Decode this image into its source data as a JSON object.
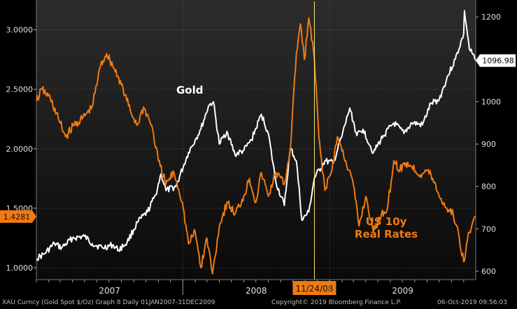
{
  "chart_data": {
    "type": "line",
    "title": "",
    "x_range": [
      "2007-01-01",
      "2009-12-31"
    ],
    "x_year_labels": [
      "2007",
      "2008",
      "2009"
    ],
    "y_left": {
      "range": [
        0.9,
        3.25
      ],
      "ticks": [
        "1.0000",
        "1.5000",
        "2.0000",
        "2.5000",
        "3.0000"
      ]
    },
    "y_right": {
      "range": [
        580,
        1240
      ],
      "ticks": [
        "600",
        "700",
        "800",
        "900",
        "1000",
        "1100",
        "1200"
      ]
    },
    "grid": true,
    "marker": {
      "date": "2008-11-24",
      "label": "11/24/08"
    },
    "series": [
      {
        "name": "Gold",
        "axis": "right",
        "color": "#ffffff",
        "last_value_label": "1096.98",
        "points": [
          [
            "2007-01-01",
            630
          ],
          [
            "2007-01-20",
            640
          ],
          [
            "2007-02-15",
            665
          ],
          [
            "2007-03-05",
            655
          ],
          [
            "2007-04-01",
            678
          ],
          [
            "2007-05-01",
            682
          ],
          [
            "2007-05-20",
            665
          ],
          [
            "2007-06-15",
            655
          ],
          [
            "2007-07-10",
            662
          ],
          [
            "2007-07-25",
            650
          ],
          [
            "2007-08-15",
            668
          ],
          [
            "2007-09-10",
            715
          ],
          [
            "2007-10-05",
            740
          ],
          [
            "2007-10-25",
            780
          ],
          [
            "2007-11-08",
            830
          ],
          [
            "2007-11-20",
            790
          ],
          [
            "2007-12-15",
            800
          ],
          [
            "2008-01-15",
            880
          ],
          [
            "2008-02-01",
            910
          ],
          [
            "2008-02-15",
            935
          ],
          [
            "2008-03-05",
            990
          ],
          [
            "2008-03-17",
            1000
          ],
          [
            "2008-04-01",
            900
          ],
          [
            "2008-04-20",
            930
          ],
          [
            "2008-05-10",
            875
          ],
          [
            "2008-06-01",
            885
          ],
          [
            "2008-06-20",
            910
          ],
          [
            "2008-07-15",
            970
          ],
          [
            "2008-08-01",
            925
          ],
          [
            "2008-08-20",
            810
          ],
          [
            "2008-09-10",
            755
          ],
          [
            "2008-09-25",
            890
          ],
          [
            "2008-10-10",
            860
          ],
          [
            "2008-10-24",
            720
          ],
          [
            "2008-11-10",
            740
          ],
          [
            "2008-11-24",
            820
          ],
          [
            "2008-12-20",
            860
          ],
          [
            "2009-01-10",
            855
          ],
          [
            "2009-02-01",
            920
          ],
          [
            "2009-02-20",
            985
          ],
          [
            "2009-03-10",
            920
          ],
          [
            "2009-03-25",
            935
          ],
          [
            "2009-04-20",
            880
          ],
          [
            "2009-05-15",
            920
          ],
          [
            "2009-06-10",
            950
          ],
          [
            "2009-07-05",
            925
          ],
          [
            "2009-07-25",
            950
          ],
          [
            "2009-08-20",
            945
          ],
          [
            "2009-09-10",
            995
          ],
          [
            "2009-10-01",
            1005
          ],
          [
            "2009-10-20",
            1055
          ],
          [
            "2009-11-10",
            1100
          ],
          [
            "2009-12-01",
            1160
          ],
          [
            "2009-12-03",
            1215
          ],
          [
            "2009-12-15",
            1125
          ],
          [
            "2009-12-31",
            1096.98
          ]
        ]
      },
      {
        "name": "US 10y\nReal Rates",
        "label_lines": [
          "US 10y",
          "Real Rates"
        ],
        "axis": "left",
        "color": "#f07a12",
        "last_value_label": "1.4281",
        "points": [
          [
            "2007-01-01",
            2.4
          ],
          [
            "2007-01-15",
            2.5
          ],
          [
            "2007-02-05",
            2.42
          ],
          [
            "2007-02-25",
            2.25
          ],
          [
            "2007-03-15",
            2.1
          ],
          [
            "2007-04-05",
            2.2
          ],
          [
            "2007-04-25",
            2.25
          ],
          [
            "2007-05-20",
            2.35
          ],
          [
            "2007-06-10",
            2.7
          ],
          [
            "2007-06-25",
            2.8
          ],
          [
            "2007-07-10",
            2.7
          ],
          [
            "2007-07-25",
            2.6
          ],
          [
            "2007-08-10",
            2.45
          ],
          [
            "2007-08-25",
            2.3
          ],
          [
            "2007-09-10",
            2.2
          ],
          [
            "2007-09-25",
            2.35
          ],
          [
            "2007-10-15",
            2.2
          ],
          [
            "2007-11-01",
            1.9
          ],
          [
            "2007-11-20",
            1.7
          ],
          [
            "2007-12-10",
            1.8
          ],
          [
            "2007-12-31",
            1.55
          ],
          [
            "2008-01-15",
            1.2
          ],
          [
            "2008-02-01",
            1.3
          ],
          [
            "2008-02-15",
            1.0
          ],
          [
            "2008-03-01",
            1.25
          ],
          [
            "2008-03-15",
            0.95
          ],
          [
            "2008-04-01",
            1.35
          ],
          [
            "2008-04-20",
            1.55
          ],
          [
            "2008-05-10",
            1.45
          ],
          [
            "2008-06-01",
            1.6
          ],
          [
            "2008-06-15",
            1.75
          ],
          [
            "2008-07-01",
            1.55
          ],
          [
            "2008-07-15",
            1.8
          ],
          [
            "2008-08-01",
            1.6
          ],
          [
            "2008-08-20",
            1.8
          ],
          [
            "2008-09-10",
            1.7
          ],
          [
            "2008-09-25",
            2.0
          ],
          [
            "2008-10-10",
            2.8
          ],
          [
            "2008-10-20",
            3.05
          ],
          [
            "2008-10-30",
            2.75
          ],
          [
            "2008-11-10",
            3.1
          ],
          [
            "2008-11-24",
            2.75
          ],
          [
            "2008-12-05",
            2.1
          ],
          [
            "2008-12-20",
            1.65
          ],
          [
            "2009-01-05",
            1.8
          ],
          [
            "2009-01-20",
            2.1
          ],
          [
            "2009-02-10",
            1.9
          ],
          [
            "2009-03-01",
            1.7
          ],
          [
            "2009-03-15",
            1.35
          ],
          [
            "2009-04-01",
            1.6
          ],
          [
            "2009-04-20",
            1.3
          ],
          [
            "2009-05-10",
            1.45
          ],
          [
            "2009-05-25",
            1.5
          ],
          [
            "2009-06-10",
            1.9
          ],
          [
            "2009-06-25",
            1.82
          ],
          [
            "2009-07-10",
            1.88
          ],
          [
            "2009-07-25",
            1.85
          ],
          [
            "2009-08-15",
            1.78
          ],
          [
            "2009-09-01",
            1.82
          ],
          [
            "2009-09-15",
            1.75
          ],
          [
            "2009-10-01",
            1.6
          ],
          [
            "2009-10-20",
            1.5
          ],
          [
            "2009-11-05",
            1.45
          ],
          [
            "2009-11-20",
            1.25
          ],
          [
            "2009-12-01",
            1.05
          ],
          [
            "2009-12-15",
            1.3
          ],
          [
            "2009-12-31",
            1.43
          ]
        ]
      }
    ]
  },
  "footer": {
    "left": "XAU Curncy (Gold Spot  $/Oz) Graph 8  Daily 01JAN2007-31DEC2009",
    "copyright": "Copyright© 2019 Bloomberg Finance L.P.",
    "timestamp": "06-Oct-2019 09:56:03"
  },
  "colors": {
    "background": "#000000",
    "plot_top": "#2c2c2c",
    "plot_bottom": "#0a0a0a",
    "gold": "#ffffff",
    "rates": "#f07a12",
    "marker": "#ffe96b",
    "marker_label_bg": "#f07a12"
  }
}
